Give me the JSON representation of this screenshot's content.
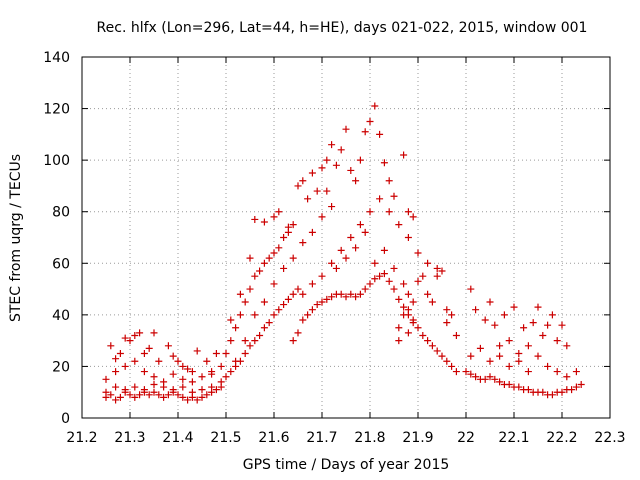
{
  "chart_data": {
    "type": "scatter",
    "title": "Rec. hlfx (Lon=296, Lat=44, h=HE), days 021-022, 2015, window 001",
    "xlabel": "GPS time / Days of year 2015",
    "ylabel": "STEC from uqrg / TECUs",
    "xlim": [
      21.2,
      22.3
    ],
    "ylim": [
      0,
      140
    ],
    "xticks": [
      "21.2",
      "21.3",
      "21.4",
      "21.5",
      "21.6",
      "21.7",
      "21.8",
      "21.9",
      "22",
      "22.1",
      "22.2",
      "22.3"
    ],
    "yticks": [
      "0",
      "20",
      "40",
      "60",
      "80",
      "100",
      "120",
      "140"
    ],
    "grid": true,
    "marker": "+",
    "color": "#cc0000",
    "points": [
      [
        21.25,
        8
      ],
      [
        21.26,
        9
      ],
      [
        21.27,
        7
      ],
      [
        21.28,
        8
      ],
      [
        21.29,
        10
      ],
      [
        21.3,
        9
      ],
      [
        21.31,
        8
      ],
      [
        21.32,
        9
      ],
      [
        21.33,
        10
      ],
      [
        21.34,
        9
      ],
      [
        21.35,
        10
      ],
      [
        21.36,
        9
      ],
      [
        21.37,
        8
      ],
      [
        21.38,
        9
      ],
      [
        21.39,
        10
      ],
      [
        21.4,
        9
      ],
      [
        21.41,
        8
      ],
      [
        21.42,
        7
      ],
      [
        21.43,
        8
      ],
      [
        21.44,
        7
      ],
      [
        21.45,
        8
      ],
      [
        21.46,
        9
      ],
      [
        21.47,
        10
      ],
      [
        21.48,
        11
      ],
      [
        21.49,
        12
      ],
      [
        21.25,
        10
      ],
      [
        21.27,
        12
      ],
      [
        21.29,
        11
      ],
      [
        21.31,
        12
      ],
      [
        21.33,
        11
      ],
      [
        21.35,
        13
      ],
      [
        21.37,
        12
      ],
      [
        21.39,
        11
      ],
      [
        21.41,
        12
      ],
      [
        21.43,
        10
      ],
      [
        21.45,
        11
      ],
      [
        21.47,
        12
      ],
      [
        21.49,
        14
      ],
      [
        21.25,
        15
      ],
      [
        21.27,
        18
      ],
      [
        21.29,
        20
      ],
      [
        21.31,
        22
      ],
      [
        21.33,
        18
      ],
      [
        21.35,
        16
      ],
      [
        21.37,
        14
      ],
      [
        21.39,
        17
      ],
      [
        21.41,
        15
      ],
      [
        21.43,
        14
      ],
      [
        21.45,
        16
      ],
      [
        21.47,
        18
      ],
      [
        21.49,
        20
      ],
      [
        21.26,
        28
      ],
      [
        21.28,
        25
      ],
      [
        21.3,
        30
      ],
      [
        21.32,
        33
      ],
      [
        21.34,
        27
      ],
      [
        21.36,
        22
      ],
      [
        21.38,
        28
      ],
      [
        21.4,
        22
      ],
      [
        21.42,
        19
      ],
      [
        21.44,
        26
      ],
      [
        21.46,
        22
      ],
      [
        21.48,
        25
      ],
      [
        21.27,
        23
      ],
      [
        21.29,
        31
      ],
      [
        21.31,
        32
      ],
      [
        21.33,
        25
      ],
      [
        21.35,
        33
      ],
      [
        21.39,
        24
      ],
      [
        21.41,
        20
      ],
      [
        21.43,
        18
      ],
      [
        21.47,
        17
      ],
      [
        21.5,
        16
      ],
      [
        21.51,
        18
      ],
      [
        21.52,
        20
      ],
      [
        21.53,
        22
      ],
      [
        21.54,
        25
      ],
      [
        21.55,
        28
      ],
      [
        21.56,
        30
      ],
      [
        21.57,
        32
      ],
      [
        21.58,
        35
      ],
      [
        21.59,
        37
      ],
      [
        21.6,
        40
      ],
      [
        21.61,
        42
      ],
      [
        21.62,
        44
      ],
      [
        21.63,
        46
      ],
      [
        21.64,
        48
      ],
      [
        21.65,
        50
      ],
      [
        21.5,
        25
      ],
      [
        21.51,
        30
      ],
      [
        21.52,
        35
      ],
      [
        21.53,
        40
      ],
      [
        21.54,
        45
      ],
      [
        21.55,
        50
      ],
      [
        21.56,
        55
      ],
      [
        21.57,
        57
      ],
      [
        21.58,
        60
      ],
      [
        21.59,
        62
      ],
      [
        21.6,
        64
      ],
      [
        21.61,
        66
      ],
      [
        21.62,
        70
      ],
      [
        21.63,
        72
      ],
      [
        21.64,
        75
      ],
      [
        21.51,
        38
      ],
      [
        21.53,
        48
      ],
      [
        21.55,
        62
      ],
      [
        21.56,
        77
      ],
      [
        21.58,
        76
      ],
      [
        21.6,
        78
      ],
      [
        21.61,
        80
      ],
      [
        21.63,
        74
      ],
      [
        21.65,
        90
      ],
      [
        21.66,
        92
      ],
      [
        21.67,
        85
      ],
      [
        21.68,
        95
      ],
      [
        21.69,
        88
      ],
      [
        21.7,
        97
      ],
      [
        21.71,
        100
      ],
      [
        21.52,
        22
      ],
      [
        21.54,
        30
      ],
      [
        21.56,
        40
      ],
      [
        21.58,
        45
      ],
      [
        21.6,
        52
      ],
      [
        21.62,
        58
      ],
      [
        21.64,
        62
      ],
      [
        21.66,
        68
      ],
      [
        21.68,
        72
      ],
      [
        21.7,
        78
      ],
      [
        21.72,
        82
      ],
      [
        21.64,
        30
      ],
      [
        21.65,
        33
      ],
      [
        21.66,
        38
      ],
      [
        21.67,
        40
      ],
      [
        21.68,
        42
      ],
      [
        21.69,
        44
      ],
      [
        21.7,
        45
      ],
      [
        21.71,
        46
      ],
      [
        21.72,
        47
      ],
      [
        21.73,
        48
      ],
      [
        21.74,
        48
      ],
      [
        21.75,
        47
      ],
      [
        21.76,
        48
      ],
      [
        21.77,
        47
      ],
      [
        21.78,
        48
      ],
      [
        21.79,
        50
      ],
      [
        21.8,
        52
      ],
      [
        21.81,
        54
      ],
      [
        21.82,
        55
      ],
      [
        21.83,
        56
      ],
      [
        21.84,
        53
      ],
      [
        21.85,
        50
      ],
      [
        21.86,
        46
      ],
      [
        21.87,
        43
      ],
      [
        21.88,
        40
      ],
      [
        21.89,
        37
      ],
      [
        21.66,
        48
      ],
      [
        21.68,
        52
      ],
      [
        21.7,
        55
      ],
      [
        21.72,
        60
      ],
      [
        21.74,
        65
      ],
      [
        21.76,
        70
      ],
      [
        21.78,
        75
      ],
      [
        21.8,
        80
      ],
      [
        21.82,
        85
      ],
      [
        21.84,
        80
      ],
      [
        21.86,
        75
      ],
      [
        21.88,
        70
      ],
      [
        21.71,
        88
      ],
      [
        21.72,
        106
      ],
      [
        21.73,
        98
      ],
      [
        21.74,
        104
      ],
      [
        21.75,
        112
      ],
      [
        21.76,
        96
      ],
      [
        21.77,
        92
      ],
      [
        21.78,
        100
      ],
      [
        21.79,
        111
      ],
      [
        21.8,
        115
      ],
      [
        21.81,
        121
      ],
      [
        21.82,
        110
      ],
      [
        21.83,
        99
      ],
      [
        21.84,
        92
      ],
      [
        21.85,
        86
      ],
      [
        21.87,
        102
      ],
      [
        21.73,
        58
      ],
      [
        21.75,
        62
      ],
      [
        21.77,
        66
      ],
      [
        21.79,
        72
      ],
      [
        21.81,
        60
      ],
      [
        21.83,
        65
      ],
      [
        21.85,
        58
      ],
      [
        21.87,
        52
      ],
      [
        21.88,
        48
      ],
      [
        21.89,
        45
      ],
      [
        21.86,
        35
      ],
      [
        21.87,
        40
      ],
      [
        21.88,
        42
      ],
      [
        21.89,
        38
      ],
      [
        21.9,
        35
      ],
      [
        21.91,
        32
      ],
      [
        21.92,
        30
      ],
      [
        21.93,
        28
      ],
      [
        21.94,
        26
      ],
      [
        21.95,
        24
      ],
      [
        21.96,
        22
      ],
      [
        21.97,
        20
      ],
      [
        21.98,
        18
      ],
      [
        21.86,
        30
      ],
      [
        21.88,
        33
      ],
      [
        21.9,
        53
      ],
      [
        21.91,
        55
      ],
      [
        21.92,
        48
      ],
      [
        21.93,
        45
      ],
      [
        21.94,
        58
      ],
      [
        21.95,
        57
      ],
      [
        21.96,
        42
      ],
      [
        21.97,
        40
      ],
      [
        21.98,
        32
      ],
      [
        21.88,
        80
      ],
      [
        21.89,
        78
      ],
      [
        21.9,
        64
      ],
      [
        21.92,
        60
      ],
      [
        21.94,
        55
      ],
      [
        21.96,
        37
      ],
      [
        22.0,
        18
      ],
      [
        22.01,
        17
      ],
      [
        22.02,
        16
      ],
      [
        22.03,
        15
      ],
      [
        22.04,
        15
      ],
      [
        22.05,
        16
      ],
      [
        22.06,
        15
      ],
      [
        22.07,
        14
      ],
      [
        22.08,
        13
      ],
      [
        22.09,
        13
      ],
      [
        22.1,
        12
      ],
      [
        22.11,
        12
      ],
      [
        22.12,
        11
      ],
      [
        22.13,
        11
      ],
      [
        22.14,
        10
      ],
      [
        22.15,
        10
      ],
      [
        22.16,
        10
      ],
      [
        22.17,
        9
      ],
      [
        22.18,
        9
      ],
      [
        22.19,
        10
      ],
      [
        22.2,
        10
      ],
      [
        22.21,
        11
      ],
      [
        22.22,
        11
      ],
      [
        22.23,
        12
      ],
      [
        22.24,
        13
      ],
      [
        22.01,
        50
      ],
      [
        22.02,
        42
      ],
      [
        22.04,
        38
      ],
      [
        22.05,
        45
      ],
      [
        22.06,
        36
      ],
      [
        22.07,
        28
      ],
      [
        22.08,
        40
      ],
      [
        22.09,
        30
      ],
      [
        22.1,
        43
      ],
      [
        22.11,
        25
      ],
      [
        22.12,
        35
      ],
      [
        22.13,
        28
      ],
      [
        22.14,
        37
      ],
      [
        22.15,
        43
      ],
      [
        22.16,
        32
      ],
      [
        22.17,
        36
      ],
      [
        22.18,
        40
      ],
      [
        22.19,
        30
      ],
      [
        22.2,
        36
      ],
      [
        22.21,
        28
      ],
      [
        22.01,
        24
      ],
      [
        22.03,
        27
      ],
      [
        22.05,
        22
      ],
      [
        22.07,
        24
      ],
      [
        22.09,
        20
      ],
      [
        22.11,
        22
      ],
      [
        22.13,
        18
      ],
      [
        22.15,
        24
      ],
      [
        22.17,
        20
      ],
      [
        22.19,
        18
      ],
      [
        22.21,
        16
      ],
      [
        22.23,
        18
      ]
    ]
  }
}
